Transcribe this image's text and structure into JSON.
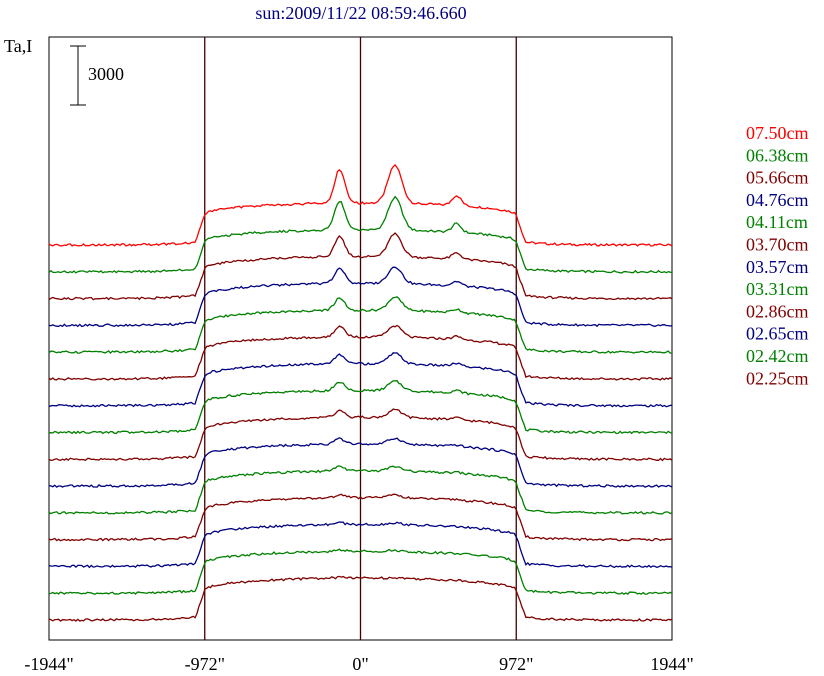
{
  "chart_data": {
    "type": "line",
    "title": "sun:2009/11/22 08:59:46.660",
    "ylabel": "Ta,I",
    "scale_bar_label": "3000",
    "x_ticks": [
      "-1944\"",
      "-972\"",
      "0\"",
      "972\"",
      "1944\""
    ],
    "xlim": [
      -1944,
      1944
    ],
    "vertical_lines_at": [
      -972,
      0,
      972
    ],
    "grid": false,
    "legend": "right",
    "colors": {
      "red": "#ff0000",
      "green": "#008000",
      "darkred": "#800000",
      "navy": "#000080",
      "axis": "#000000",
      "title": "#000080",
      "marker_line": "#400000"
    },
    "series": [
      {
        "name": "07.50cm",
        "color": "red",
        "peaks": 1.0
      },
      {
        "name": "06.38cm",
        "color": "green",
        "peaks": 0.85
      },
      {
        "name": "05.66cm",
        "color": "darkred",
        "peaks": 0.6
      },
      {
        "name": "04.76cm",
        "color": "navy",
        "peaks": 0.45
      },
      {
        "name": "04.11cm",
        "color": "green",
        "peaks": 0.35
      },
      {
        "name": "03.70cm",
        "color": "darkred",
        "peaks": 0.3
      },
      {
        "name": "03.57cm",
        "color": "navy",
        "peaks": 0.28
      },
      {
        "name": "03.31cm",
        "color": "green",
        "peaks": 0.25
      },
      {
        "name": "02.86cm",
        "color": "darkred",
        "peaks": 0.2
      },
      {
        "name": "02.65cm",
        "color": "navy",
        "peaks": 0.16
      },
      {
        "name": "02.42cm",
        "color": "green",
        "peaks": 0.12
      },
      {
        "name": "02.25cm",
        "color": "darkred",
        "peaks": 0.08
      },
      {
        "color": "navy",
        "peaks": 0.05
      },
      {
        "color": "green",
        "peaks": 0.03
      },
      {
        "color": "darkred",
        "peaks": 0.02
      }
    ]
  }
}
